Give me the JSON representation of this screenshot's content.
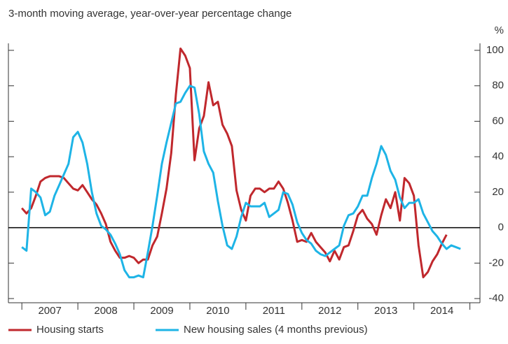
{
  "chart_data": {
    "type": "line",
    "subtitle": "3-month moving average, year-over-year percentage change",
    "y_unit": "%",
    "x": [
      2007,
      2007.083,
      2007.167,
      2007.25,
      2007.333,
      2007.417,
      2007.5,
      2007.583,
      2007.667,
      2007.75,
      2007.833,
      2007.917,
      2008,
      2008.083,
      2008.167,
      2008.25,
      2008.333,
      2008.417,
      2008.5,
      2008.583,
      2008.667,
      2008.75,
      2008.833,
      2008.917,
      2009,
      2009.083,
      2009.167,
      2009.25,
      2009.333,
      2009.417,
      2009.5,
      2009.583,
      2009.667,
      2009.75,
      2009.833,
      2009.917,
      2010,
      2010.083,
      2010.167,
      2010.25,
      2010.333,
      2010.417,
      2010.5,
      2010.583,
      2010.667,
      2010.75,
      2010.833,
      2010.917,
      2011,
      2011.083,
      2011.167,
      2011.25,
      2011.333,
      2011.417,
      2011.5,
      2011.583,
      2011.667,
      2011.75,
      2011.833,
      2011.917,
      2012,
      2012.083,
      2012.167,
      2012.25,
      2012.333,
      2012.417,
      2012.5,
      2012.583,
      2012.667,
      2012.75,
      2012.833,
      2012.917,
      2013,
      2013.083,
      2013.167,
      2013.25,
      2013.333,
      2013.417,
      2013.5,
      2013.583,
      2013.667,
      2013.75,
      2013.833,
      2013.917,
      2014,
      2014.083,
      2014.167,
      2014.25,
      2014.333,
      2014.417,
      2014.5,
      2014.583,
      2014.667,
      2014.75,
      2014.833
    ],
    "series": [
      {
        "name": "Housing starts",
        "color": "#c0282d",
        "values": [
          11,
          8,
          11,
          18,
          26,
          28,
          29,
          29,
          29,
          28,
          25,
          22,
          21,
          24,
          20,
          16,
          13,
          8,
          2,
          -8,
          -13,
          -17,
          -17,
          -16,
          -17,
          -20,
          -18,
          -18,
          -10,
          -5,
          8,
          22,
          42,
          75,
          101,
          97,
          90,
          38,
          56,
          63,
          82,
          69,
          71,
          58,
          53,
          46,
          21,
          10,
          4,
          18,
          22,
          22,
          20,
          22,
          22,
          26,
          22,
          14,
          4,
          -8,
          -7,
          -8,
          -3,
          -8,
          -11,
          -14,
          -19,
          -13,
          -18,
          -11,
          -10,
          -2,
          7,
          10,
          5,
          2,
          -4,
          7,
          16,
          11,
          20,
          4,
          28,
          25,
          18,
          -10,
          -28,
          -25,
          -19,
          -15,
          -9,
          -4,
          null,
          null,
          null
        ]
      },
      {
        "name": "New housing sales (4 months previous)",
        "color": "#1eb4e6",
        "values": [
          -11,
          -13,
          22,
          20,
          17,
          7,
          9,
          18,
          24,
          30,
          36,
          51,
          54,
          48,
          36,
          20,
          8,
          1,
          -1,
          -4,
          -9,
          -15,
          -24,
          -28,
          -28,
          -27,
          -28,
          -14,
          1,
          18,
          36,
          48,
          59,
          70,
          71,
          76,
          80,
          79,
          64,
          43,
          36,
          31,
          15,
          1,
          -10,
          -12,
          -5,
          6,
          14,
          12,
          12,
          12,
          14,
          6,
          8,
          10,
          20,
          19,
          13,
          3,
          -3,
          -7,
          -9,
          -13,
          -15,
          -16,
          -14,
          -12,
          -10,
          1,
          7,
          8,
          12,
          18,
          18,
          28,
          36,
          46,
          41,
          32,
          27,
          17,
          11,
          14,
          14,
          16,
          8,
          3,
          -2,
          -5,
          -9,
          -12,
          -10,
          -11,
          -12
        ]
      }
    ],
    "xlim": [
      2006.76,
      2015.18
    ],
    "xticks": [
      {
        "value": 2007.5,
        "label": "2007"
      },
      {
        "value": 2008.5,
        "label": "2008"
      },
      {
        "value": 2009.5,
        "label": "2009"
      },
      {
        "value": 2010.5,
        "label": "2010"
      },
      {
        "value": 2011.5,
        "label": "2011"
      },
      {
        "value": 2012.5,
        "label": "2012"
      },
      {
        "value": 2013.5,
        "label": "2013"
      },
      {
        "value": 2014.5,
        "label": "2014"
      }
    ],
    "ylim": [
      -40,
      100
    ],
    "yticks": [
      -40,
      -20,
      0,
      20,
      40,
      60,
      80,
      100
    ],
    "zero_line": true
  }
}
